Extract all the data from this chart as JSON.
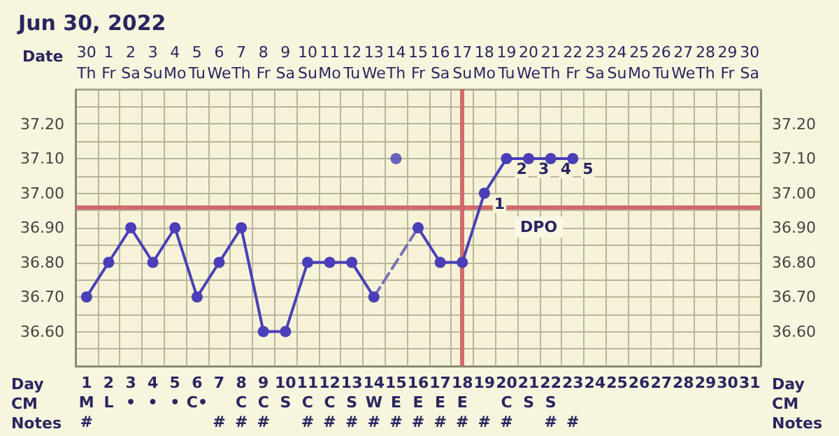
{
  "chart_data": {
    "type": "line",
    "title": "Jun 30, 2022",
    "x2label": "Date",
    "xlabel": "Day\nCM\nNotes",
    "categories": [
      "1\nM\n#",
      "2\nL",
      "3\n•",
      "4\n•",
      "5\n•",
      "6\nC•",
      "7\n\n#",
      "8\nC\n#",
      "9\nC\n#",
      "10\nS",
      "11\nC\n#",
      "12\nC\n#",
      "13\nS\n#",
      "14\nW\n#",
      "15\nE\n#",
      "16\nE\n#",
      "17\nE\n#",
      "18\nE\n#",
      "19\n\n#",
      "20\nC\n#",
      "21\nS",
      "22\nS\n#",
      "23\n\n#",
      "24",
      "25",
      "26",
      "27",
      "28",
      "29",
      "30",
      "31"
    ],
    "x2lim": [
      "2022-06-29T12:00",
      "2022-07-30T12:00"
    ],
    "x2ticks": [
      {
        "value": "2022-06-30",
        "label": "30\nTh"
      },
      {
        "value": "2022-07-01",
        "label": "1\nFr"
      },
      {
        "value": "2022-07-02",
        "label": "2\nSa"
      },
      {
        "value": "2022-07-03",
        "label": "3\nSu"
      },
      {
        "value": "2022-07-04",
        "label": "4\nMo"
      },
      {
        "value": "2022-07-05",
        "label": "5\nTu"
      },
      {
        "value": "2022-07-06",
        "label": "6\nWe"
      },
      {
        "value": "2022-07-07",
        "label": "7\nTh"
      },
      {
        "value": "2022-07-08",
        "label": "8\nFr"
      },
      {
        "value": "2022-07-09",
        "label": "9\nSa"
      },
      {
        "value": "2022-07-10",
        "label": "10\nSu"
      },
      {
        "value": "2022-07-11",
        "label": "11\nMo"
      },
      {
        "value": "2022-07-12",
        "label": "12\nTu"
      },
      {
        "value": "2022-07-13",
        "label": "13\nWe"
      },
      {
        "value": "2022-07-14",
        "label": "14\nTh"
      },
      {
        "value": "2022-07-15",
        "label": "15\nFr"
      },
      {
        "value": "2022-07-16",
        "label": "16\nSa"
      },
      {
        "value": "2022-07-17",
        "label": "17\nSu"
      },
      {
        "value": "2022-07-18",
        "label": "18\nMo"
      },
      {
        "value": "2022-07-19",
        "label": "19\nTu"
      },
      {
        "value": "2022-07-20",
        "label": "20\nWe"
      },
      {
        "value": "2022-07-21",
        "label": "21\nTh"
      },
      {
        "value": "2022-07-22",
        "label": "22\nFr"
      },
      {
        "value": "2022-07-23",
        "label": "23\nSa"
      },
      {
        "value": "2022-07-24",
        "label": "24\nSu"
      },
      {
        "value": "2022-07-25",
        "label": "25\nMo"
      },
      {
        "value": "2022-07-26",
        "label": "26\nTu"
      },
      {
        "value": "2022-07-27",
        "label": "27\nWe"
      },
      {
        "value": "2022-07-28",
        "label": "28\nTh"
      },
      {
        "value": "2022-07-29",
        "label": "29\nFr"
      },
      {
        "value": "2022-07-30",
        "label": "30\nSa"
      }
    ],
    "ylim": [
      36.5,
      37.3
    ],
    "yticks": [
      {
        "value": 36.5,
        "label": null
      },
      {
        "value": 36.55,
        "label": null
      },
      {
        "value": 36.6,
        "label": "36.60"
      },
      {
        "value": 36.65,
        "label": null
      },
      {
        "value": 36.7,
        "label": "36.70"
      },
      {
        "value": 36.75,
        "label": null
      },
      {
        "value": 36.8,
        "label": "36.80"
      },
      {
        "value": 36.85,
        "label": null
      },
      {
        "value": 36.9,
        "label": "36.90"
      },
      {
        "value": 36.95,
        "label": null
      },
      {
        "value": 37.0,
        "label": "37.00"
      },
      {
        "value": 37.05,
        "label": null
      },
      {
        "value": 37.1,
        "label": "37.10"
      },
      {
        "value": 37.15,
        "label": null
      },
      {
        "value": 37.2,
        "label": "37.20"
      },
      {
        "value": 37.25,
        "label": null
      },
      {
        "value": 37.3,
        "label": null
      }
    ],
    "y2lim": [
      36.5,
      37.3
    ],
    "y2ticks": [
      {
        "value": 36.5,
        "label": null
      },
      {
        "value": 36.55,
        "label": null
      },
      {
        "value": 36.6,
        "label": "36.60"
      },
      {
        "value": 36.65,
        "label": null
      },
      {
        "value": 36.7,
        "label": "36.70"
      },
      {
        "value": 36.75,
        "label": null
      },
      {
        "value": 36.8,
        "label": "36.80"
      },
      {
        "value": 36.85,
        "label": null
      },
      {
        "value": 36.9,
        "label": "36.90"
      },
      {
        "value": 36.95,
        "label": null
      },
      {
        "value": 37.0,
        "label": "37.00"
      },
      {
        "value": 37.05,
        "label": null
      },
      {
        "value": 37.1,
        "label": "37.10"
      },
      {
        "value": 37.15,
        "label": null
      },
      {
        "value": 37.2,
        "label": "37.20"
      },
      {
        "value": 37.25,
        "label": null
      },
      {
        "value": 37.3,
        "label": null
      }
    ],
    "series": [
      {
        "color": "#4a3fb8",
        "line_style": "solid",
        "marker": "circle",
        "values": [
          36.7,
          36.8,
          36.9,
          36.8,
          36.9,
          36.7,
          36.8,
          36.9,
          36.6,
          36.6,
          36.8,
          36.8,
          36.8,
          36.7,
          null,
          null,
          null,
          null,
          null,
          null,
          null,
          null,
          null,
          null,
          null,
          null,
          null,
          null,
          null,
          null,
          null
        ]
      },
      {
        "color": "#7a70b8",
        "line_style": "dashed",
        "marker": "none",
        "values": [
          null,
          null,
          null,
          null,
          null,
          null,
          null,
          null,
          null,
          null,
          null,
          null,
          null,
          36.7,
          null,
          36.9,
          null,
          null,
          null,
          null,
          null,
          null,
          null,
          null,
          null,
          null,
          null,
          null,
          null,
          null,
          null
        ]
      },
      {
        "color": "#4a3fb8",
        "line_style": "solid",
        "marker": "circle",
        "values": [
          null,
          null,
          null,
          null,
          null,
          null,
          null,
          null,
          null,
          null,
          null,
          null,
          null,
          null,
          null,
          36.9,
          36.8,
          36.8,
          37.0,
          37.1,
          37.1,
          37.1,
          37.1,
          null,
          null,
          null,
          null,
          null,
          null,
          null,
          null
        ]
      },
      {
        "type": "scatter",
        "color": "#4a3fb8",
        "marker": "circle",
        "values": [
          null,
          null,
          null,
          null,
          null,
          null,
          null,
          null,
          null,
          null,
          null,
          null,
          null,
          null,
          37.1,
          null,
          null,
          null,
          null,
          null,
          null,
          null,
          null,
          null,
          null,
          null,
          null,
          null,
          null,
          null,
          null
        ]
      }
    ],
    "ref_lines": [
      {
        "axis": "y",
        "value": 36.96,
        "color": "#d26a6a"
      },
      {
        "axis": "x",
        "value": "18\nE\n#",
        "color": "#d26a6a"
      }
    ],
    "annotations": [
      {
        "text": "1",
        "x": "19\n\n#",
        "y": 37.0
      },
      {
        "text": "2",
        "x": "20\nC\n#",
        "y": 37.1
      },
      {
        "text": "3",
        "x": "21\nS",
        "y": 37.1
      },
      {
        "text": "4",
        "x": "22\nS\n#",
        "y": 37.1
      },
      {
        "text": "5",
        "x": "23\n\n#",
        "y": 37.1
      },
      "DPO"
    ],
    "grid": true
  }
}
